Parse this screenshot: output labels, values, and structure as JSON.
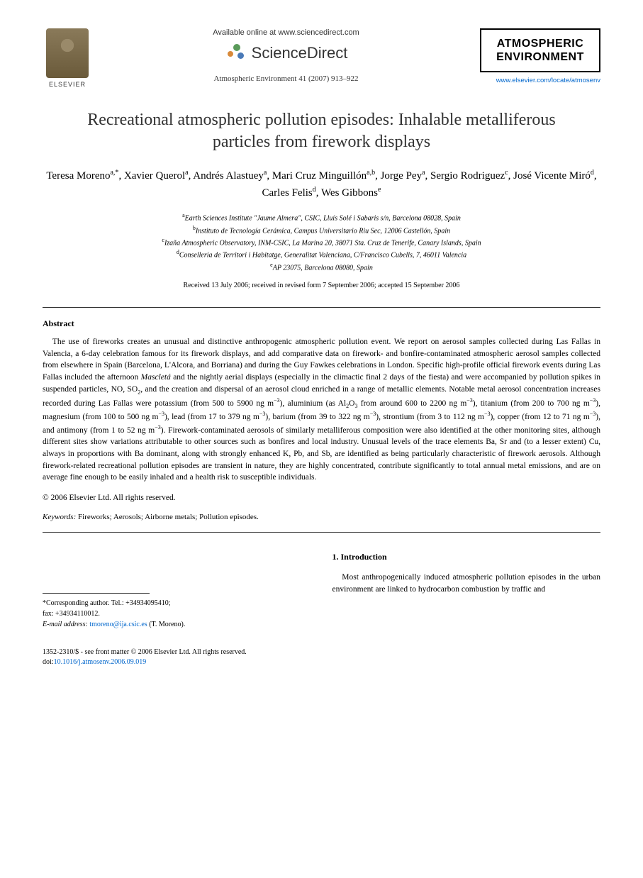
{
  "header": {
    "available_online": "Available online at www.sciencedirect.com",
    "sciencedirect": "ScienceDirect",
    "citation": "Atmospheric Environment 41 (2007) 913–922",
    "elsevier_label": "ELSEVIER",
    "journal_name_l1": "ATMOSPHERIC",
    "journal_name_l2": "ENVIRONMENT",
    "journal_url": "www.elsevier.com/locate/atmosenv"
  },
  "article": {
    "title": "Recreational atmospheric pollution episodes: Inhalable metalliferous particles from firework displays",
    "authors_html": "Teresa Moreno<sup>a,*</sup>, Xavier Querol<sup>a</sup>, Andrés Alastuey<sup>a</sup>, Mari Cruz Minguillón<sup>a,b</sup>, Jorge Pey<sup>a</sup>, Sergio Rodriguez<sup>c</sup>, José Vicente Miró<sup>d</sup>, Carles Felis<sup>d</sup>, Wes Gibbons<sup>e</sup>",
    "affiliations": [
      {
        "sup": "a",
        "text": "Earth Sciences Institute \"Jaume Almera\", CSIC, Lluís Solé i Sabaris s/n, Barcelona 08028, Spain"
      },
      {
        "sup": "b",
        "text": "Instituto de Tecnología Cerámica, Campus Universitario Riu Sec, 12006 Castellón, Spain"
      },
      {
        "sup": "c",
        "text": "Izaña Atmospheric Observatory, INM-CSIC, La Marina 20, 38071 Sta. Cruz de Tenerife, Canary Islands, Spain"
      },
      {
        "sup": "d",
        "text": "Conselleria de Territori i Habitatge, Generalitat Valenciana, C/Francisco Cubells, 7, 46011 Valencia"
      },
      {
        "sup": "e",
        "text": "AP 23075, Barcelona 08080, Spain"
      }
    ],
    "dates": "Received 13 July 2006; received in revised form 7 September 2006; accepted 15 September 2006",
    "abstract_heading": "Abstract",
    "abstract_html": "The use of fireworks creates an unusual and distinctive anthropogenic atmospheric pollution event. We report on aerosol samples collected during Las Fallas in Valencia, a 6-day celebration famous for its firework displays, and add comparative data on firework- and bonfire-contaminated atmospheric aerosol samples collected from elsewhere in Spain (Barcelona, L'Alcora, and Borriana) and during the Guy Fawkes celebrations in London. Specific high-profile official firework events during Las Fallas included the afternoon <i>Mascletá</i> and the nightly aerial displays (especially in the climactic final 2 days of the fiesta) and were accompanied by pollution spikes in suspended particles, NO, SO<sub>2</sub>, and the creation and dispersal of an aerosol cloud enriched in a range of metallic elements. Notable metal aerosol concentration increases recorded during Las Fallas were potassium (from 500 to 5900 ng m<sup>−3</sup>), aluminium (as Al<sub>2</sub>O<sub>3</sub> from around 600 to 2200 ng m<sup>−3</sup>), titanium (from 200 to 700 ng m<sup>−3</sup>), magnesium (from 100 to 500 ng m<sup>−3</sup>), lead (from 17 to 379 ng m<sup>−3</sup>), barium (from 39 to 322 ng m<sup>−3</sup>), strontium (from 3 to 112 ng m<sup>−3</sup>), copper (from 12 to 71 ng m<sup>−3</sup>), and antimony (from 1 to 52 ng m<sup>−3</sup>). Firework-contaminated aerosols of similarly metalliferous composition were also identified at the other monitoring sites, although different sites show variations attributable to other sources such as bonfires and local industry. Unusual levels of the trace elements Ba, Sr and (to a lesser extent) Cu, always in proportions with Ba dominant, along with strongly enhanced K, Pb, and Sb, are identified as being particularly characteristic of firework aerosols. Although firework-related recreational pollution episodes are transient in nature, they are highly concentrated, contribute significantly to total annual metal emissions, and are on average fine enough to be easily inhaled and a health risk to susceptible individuals.",
    "copyright": "© 2006 Elsevier Ltd. All rights reserved.",
    "keywords_label": "Keywords:",
    "keywords": "Fireworks; Aerosols; Airborne metals; Pollution episodes.",
    "corresponding": {
      "line1": "*Corresponding author. Tel.: +34934095410;",
      "line2": "fax: +34934110012.",
      "email_label": "E-mail address:",
      "email": "tmoreno@ija.csic.es",
      "email_suffix": "(T. Moreno)."
    },
    "intro_heading": "1. Introduction",
    "intro_text": "Most anthropogenically induced atmospheric pollution episodes in the urban environment are linked to hydrocarbon combustion by traffic and",
    "footer": {
      "front_matter": "1352-2310/$ - see front matter © 2006 Elsevier Ltd. All rights reserved.",
      "doi_label": "doi:",
      "doi": "10.1016/j.atmosenv.2006.09.019"
    }
  },
  "colors": {
    "link": "#0066cc",
    "text": "#000000",
    "bg": "#ffffff"
  }
}
